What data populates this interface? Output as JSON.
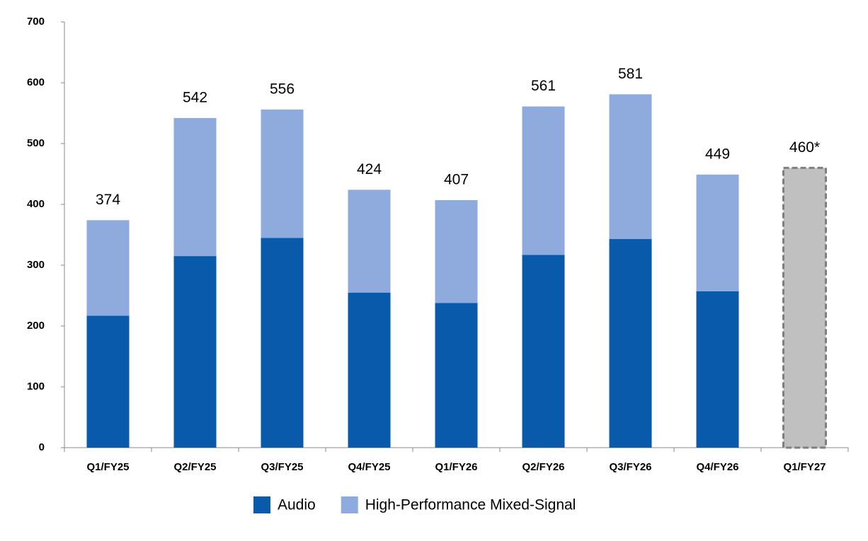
{
  "chart_data": {
    "type": "stacked_bar",
    "categories": [
      "Q1/FY25",
      "Q2/FY25",
      "Q3/FY25",
      "Q4/FY25",
      "Q1/FY26",
      "Q2/FY26",
      "Q3/FY26",
      "Q4/FY26",
      "Q1/FY27"
    ],
    "series": [
      {
        "name": "Audio",
        "color": "#0a5aab",
        "values": [
          217,
          315,
          345,
          255,
          238,
          317,
          343,
          257,
          null
        ]
      },
      {
        "name": "High-Performance Mixed-Signal",
        "color": "#8faadc",
        "values": [
          157,
          227,
          211,
          169,
          169,
          244,
          238,
          192,
          null
        ]
      }
    ],
    "totals": {
      "values": [
        374,
        542,
        556,
        424,
        407,
        561,
        581,
        449,
        460
      ],
      "value_labels": [
        "374",
        "542",
        "556",
        "424",
        "407",
        "561",
        "581",
        "449",
        "460*"
      ]
    },
    "estimate_color": "#c0c0c0",
    "ylim": [
      0,
      700
    ],
    "yticks": [
      0,
      100,
      200,
      300,
      400,
      500,
      600,
      700
    ],
    "grid": false,
    "legend": "bottom"
  }
}
